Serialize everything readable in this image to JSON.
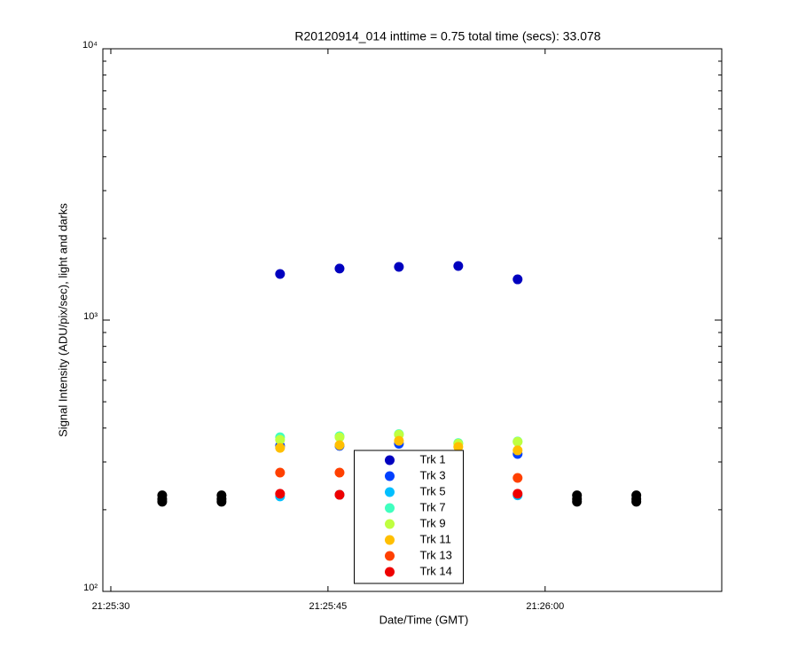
{
  "chart_data": {
    "type": "scatter",
    "title": "R20120914_014 inttime = 0.75 total time (secs): 33.078",
    "x_label": "Date/Time (GMT)",
    "y_label": "Signal Intensity (ADU/pix/sec), light and darks",
    "x": [
      77133.55,
      77137.65,
      77141.69,
      77145.8,
      77149.9,
      77154.0,
      77158.1,
      77162.2,
      77166.3
    ],
    "series": [
      {
        "name": "Trk 1",
        "color": "#0000bf",
        "values": [
          null,
          null,
          1479,
          1549,
          1571,
          1583,
          1413,
          null,
          null
        ]
      },
      {
        "name": "Trk 3",
        "color": "#0040ff",
        "values": [
          null,
          null,
          344,
          344,
          350,
          null,
          321,
          null,
          null
        ]
      },
      {
        "name": "Trk 5",
        "color": "#00bfff",
        "values": [
          null,
          null,
          224,
          227,
          null,
          null,
          226,
          null,
          null
        ]
      },
      {
        "name": "Trk 7",
        "color": "#40ffbf",
        "values": [
          null,
          null,
          370,
          373,
          380,
          352,
          357,
          null,
          null
        ]
      },
      {
        "name": "Trk 9",
        "color": "#bfff40",
        "values": [
          null,
          null,
          362,
          370,
          378,
          350,
          356,
          null,
          null
        ]
      },
      {
        "name": "Trk 11",
        "color": "#ffbf00",
        "values": [
          null,
          null,
          338,
          346,
          359,
          341,
          331,
          null,
          null
        ]
      },
      {
        "name": "Trk 13",
        "color": "#ff4000",
        "values": [
          null,
          null,
          274,
          274,
          null,
          null,
          262,
          null,
          null
        ]
      },
      {
        "name": "Trk 14",
        "color": "#ee0000",
        "values": [
          null,
          null,
          229,
          227,
          null,
          null,
          229,
          null,
          null
        ]
      }
    ],
    "darks": {
      "color": "#000000",
      "x": [
        77133.55,
        77133.55,
        77133.55,
        77137.65,
        77137.65,
        77137.65,
        77162.2,
        77162.2,
        77162.2,
        77166.3,
        77166.3,
        77166.3
      ],
      "values": [
        214,
        219,
        226,
        214,
        219,
        226,
        214,
        219,
        226,
        214,
        219,
        226
      ]
    },
    "xlim": [
      77129.45,
      77172.2
    ],
    "xticks": [
      {
        "value": 77130,
        "label": "21:25:30"
      },
      {
        "value": 77145,
        "label": "21:25:45"
      },
      {
        "value": 77160,
        "label": "21:26:00"
      }
    ],
    "ylim": [
      100,
      10000
    ],
    "yticks": [
      {
        "value": 100,
        "label": "10²"
      },
      {
        "value": 1000,
        "label": "10³"
      },
      {
        "value": 10000,
        "label": "10⁴"
      }
    ],
    "y_scale": "log",
    "legend": "lower center"
  }
}
